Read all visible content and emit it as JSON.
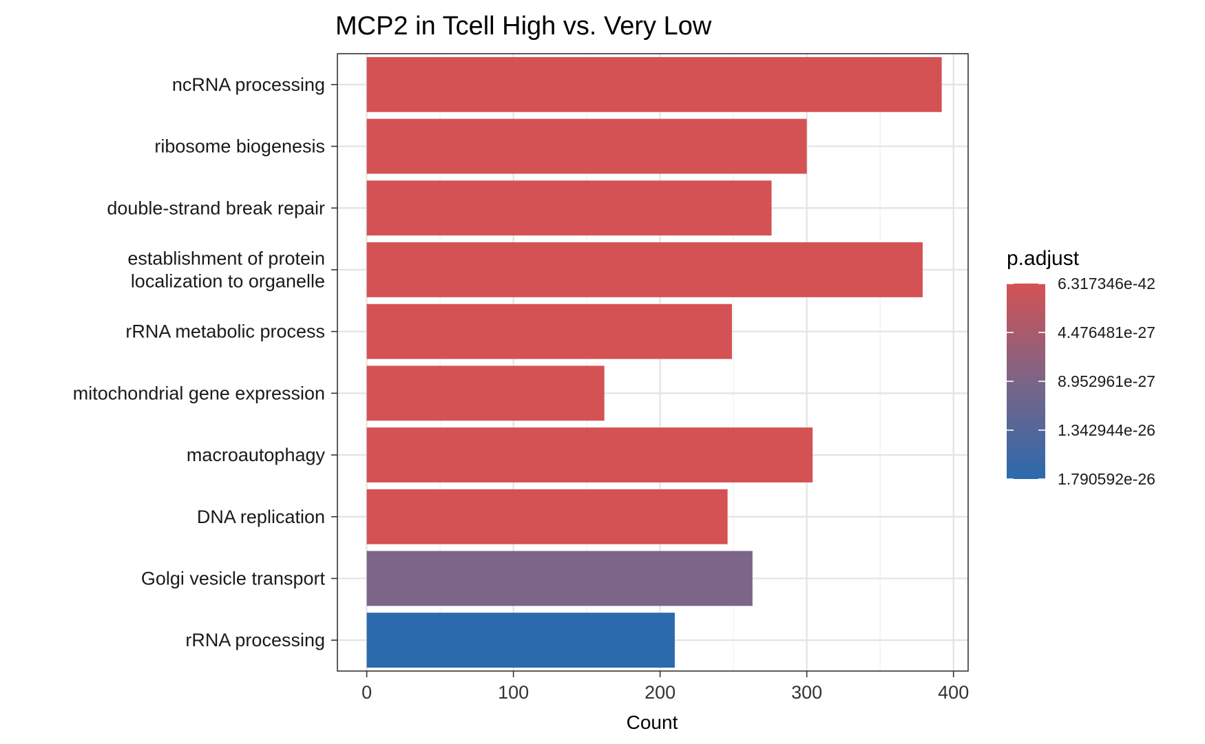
{
  "chart_data": {
    "type": "bar",
    "orientation": "horizontal",
    "title": "MCP2 in Tcell High vs. Very Low",
    "xlabel": "Count",
    "ylabel": "",
    "xlim": [
      -20,
      410
    ],
    "xticks": [
      0,
      100,
      200,
      300,
      400
    ],
    "grid": true,
    "categories": [
      "ncRNA processing",
      "ribosome biogenesis",
      "double-strand break repair",
      "establishment of protein\nlocalization to organelle",
      "rRNA metabolic process",
      "mitochondrial gene expression",
      "macroautophagy",
      "DNA replication",
      "Golgi vesicle transport",
      "rRNA processing"
    ],
    "values": [
      392,
      300,
      276,
      379,
      249,
      162,
      304,
      246,
      263,
      210
    ],
    "bar_colors": [
      "#d45254",
      "#d45254",
      "#d45254",
      "#d45254",
      "#d45254",
      "#d45254",
      "#d45254",
      "#d45254",
      "#7c6587",
      "#2b6aad"
    ],
    "legend": {
      "title": "p.adjust",
      "placement": "right",
      "labels": [
        "6.317346e-42",
        "4.476481e-27",
        "8.952961e-27",
        "1.342944e-26",
        "1.790592e-26"
      ],
      "color_low": "#d45254",
      "color_mid": "#7c6587",
      "color_high": "#2b6aad"
    }
  }
}
